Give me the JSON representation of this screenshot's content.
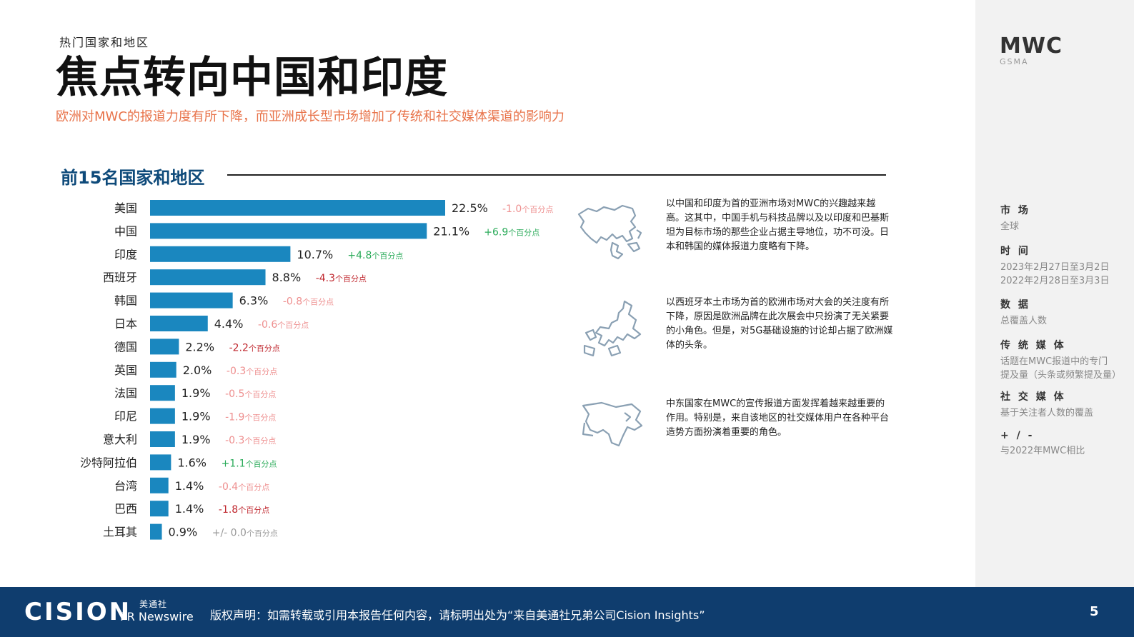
{
  "header": {
    "supertitle": "热门国家和地区",
    "title": "焦点转向中国和印度",
    "subtitle": "欧洲对MWC的报道力度有所下降，而亚洲成长型市场增加了传统和社交媒体渠道的影响力"
  },
  "chart_data": {
    "type": "bar",
    "orientation": "horizontal",
    "title": "前15名国家和地区",
    "categories": [
      "美国",
      "中国",
      "印度",
      "西班牙",
      "韩国",
      "日本",
      "德国",
      "英国",
      "法国",
      "印尼",
      "意大利",
      "沙特阿拉伯",
      "台湾",
      "巴西",
      "土耳其"
    ],
    "values": [
      22.5,
      21.1,
      10.7,
      8.8,
      6.3,
      4.4,
      2.2,
      2.0,
      1.9,
      1.9,
      1.9,
      1.6,
      1.4,
      1.4,
      0.9
    ],
    "value_labels": [
      "22.5%",
      "21.1%",
      "10.7%",
      "8.8%",
      "6.3%",
      "4.4%",
      "2.2%",
      "2.0%",
      "1.9%",
      "1.9%",
      "1.9%",
      "1.6%",
      "1.4%",
      "1.4%",
      "0.9%"
    ],
    "changes": [
      {
        "num": "-1.0",
        "unit": "个百分点",
        "kind": "down-light"
      },
      {
        "num": "+6.9",
        "unit": "个百分点",
        "kind": "up"
      },
      {
        "num": "+4.8",
        "unit": "个百分点",
        "kind": "up"
      },
      {
        "num": "-4.3",
        "unit": "个百分点",
        "kind": "down-strong"
      },
      {
        "num": "-0.8",
        "unit": "个百分点",
        "kind": "down-light"
      },
      {
        "num": "-0.6",
        "unit": "个百分点",
        "kind": "down-light"
      },
      {
        "num": "-2.2",
        "unit": "个百分点",
        "kind": "down-strong"
      },
      {
        "num": "-0.3",
        "unit": "个百分点",
        "kind": "down-light"
      },
      {
        "num": "-0.5",
        "unit": "个百分点",
        "kind": "down-light"
      },
      {
        "num": "-1.9",
        "unit": "个百分点",
        "kind": "down-light"
      },
      {
        "num": "-0.3",
        "unit": "个百分点",
        "kind": "down-light"
      },
      {
        "num": "+1.1",
        "unit": "个百分点",
        "kind": "up"
      },
      {
        "num": "-0.4",
        "unit": "个百分点",
        "kind": "down-light"
      },
      {
        "num": "-1.8",
        "unit": "个百分点",
        "kind": "down-strong"
      },
      {
        "num": "+/- 0.0",
        "unit": "个百分点",
        "kind": "neutral"
      }
    ],
    "colors": {
      "bar": "#1a87bf",
      "up": "#2bab5a",
      "down-light": "#ee8f8f",
      "down-strong": "#c0282f",
      "neutral": "#999999"
    }
  },
  "notes": [
    {
      "text": "以中国和印度为首的亚洲市场对MWC的兴趣越来越高。这其中，中国手机与科技品牌以及以印度和巴基斯坦为目标市场的那些企业占据主导地位，功不可没。日本和韩国的媒体报道力度略有下降。",
      "icon": "asia-map-icon"
    },
    {
      "text": "以西班牙本土市场为首的欧洲市场对大会的关注度有所下降，原因是欧洲品牌在此次展会中只扮演了无关紧要的小角色。但是，对5G基础设施的讨论却占据了欧洲媒体的头条。",
      "icon": "europe-map-icon"
    },
    {
      "text": "中东国家在MWC的宣传报道方面发挥着越来越重要的作用。特别是，来自该地区的社交媒体用户在各种平台造势方面扮演着重要的角色。",
      "icon": "middle-east-map-icon"
    }
  ],
  "sidebar": {
    "logo_main": "MWC",
    "logo_sub": "GSMA",
    "blocks": [
      {
        "label": "市 场",
        "lines": [
          "全球"
        ]
      },
      {
        "label": "时 间",
        "lines": [
          "2023年2月27日至3月2日",
          "2022年2月28日至3月3日"
        ]
      },
      {
        "label": "数 据",
        "lines": [
          "总覆盖人数"
        ]
      },
      {
        "label": "传 统 媒 体",
        "lines": [
          "话题在MWC报道中的专门",
          "提及量（头条或频繁提及量）"
        ]
      },
      {
        "label": "社 交 媒 体",
        "lines": [
          "基于关注者人数的覆盖"
        ]
      },
      {
        "label": "+ / -",
        "lines": [
          "与2022年MWC相比"
        ]
      }
    ]
  },
  "footer": {
    "cision": "CISION",
    "prn_top": "美通社",
    "prn_main": "PR Newswire",
    "copyright": "版权声明：如需转载或引用本报告任何内容，请标明出处为“来自美通社兄弟公司Cision Insights”",
    "page": "5"
  }
}
